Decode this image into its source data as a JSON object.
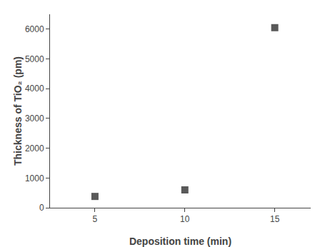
{
  "chart_data": {
    "type": "scatter",
    "x": [
      5,
      10,
      15
    ],
    "values": [
      380,
      600,
      6050
    ],
    "xlabel": "Deposition time (min)",
    "ylabel": "Thickness of TiO₂ (pm)",
    "xlim": [
      2.5,
      17
    ],
    "ylim": [
      0,
      6500
    ],
    "xticks": [
      5,
      10,
      15
    ],
    "yticks": [
      0,
      1000,
      2000,
      3000,
      4000,
      5000,
      6000
    ],
    "color": "#595959",
    "marker": "square",
    "grid": false
  }
}
